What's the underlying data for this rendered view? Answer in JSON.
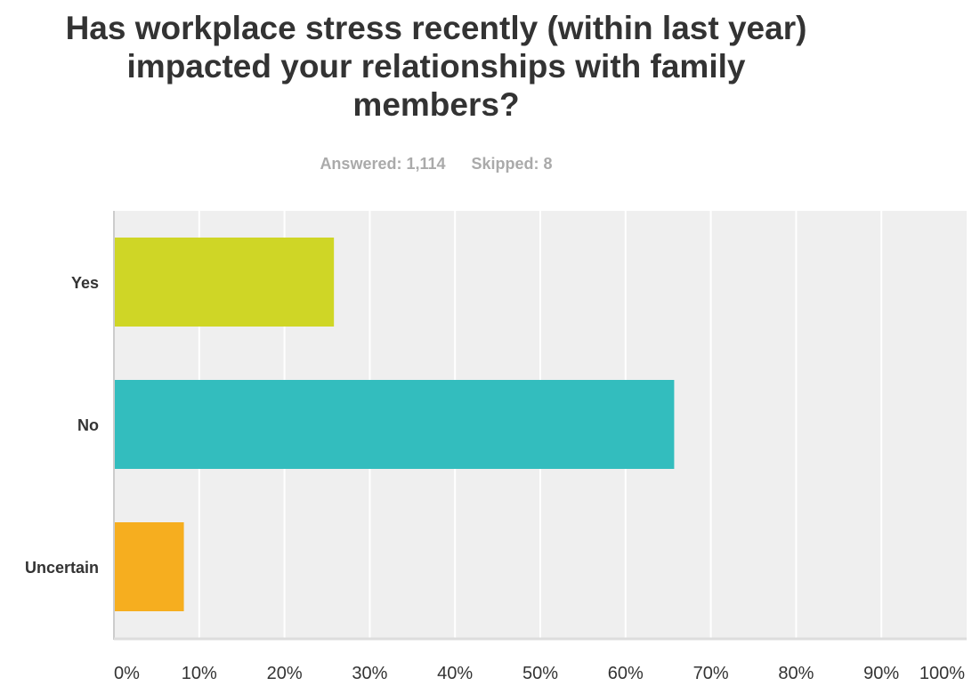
{
  "chart_data": {
    "type": "bar",
    "orientation": "horizontal",
    "title": "Has workplace stress recently (within last year) impacted your relationships with family members?",
    "stats": {
      "answered": "Answered: 1,114",
      "skipped": "Skipped: 8"
    },
    "categories": [
      "Yes",
      "No",
      "Uncertain"
    ],
    "values": [
      25.8,
      65.7,
      8.2
    ],
    "colors": [
      "#cfd626",
      "#33bdbe",
      "#f6ae1f"
    ],
    "xlim": [
      0,
      100
    ],
    "xticks": [
      "0%",
      "10%",
      "20%",
      "30%",
      "40%",
      "50%",
      "60%",
      "70%",
      "80%",
      "90%",
      "100%"
    ],
    "xlabel": "",
    "ylabel": "",
    "grid": true
  }
}
